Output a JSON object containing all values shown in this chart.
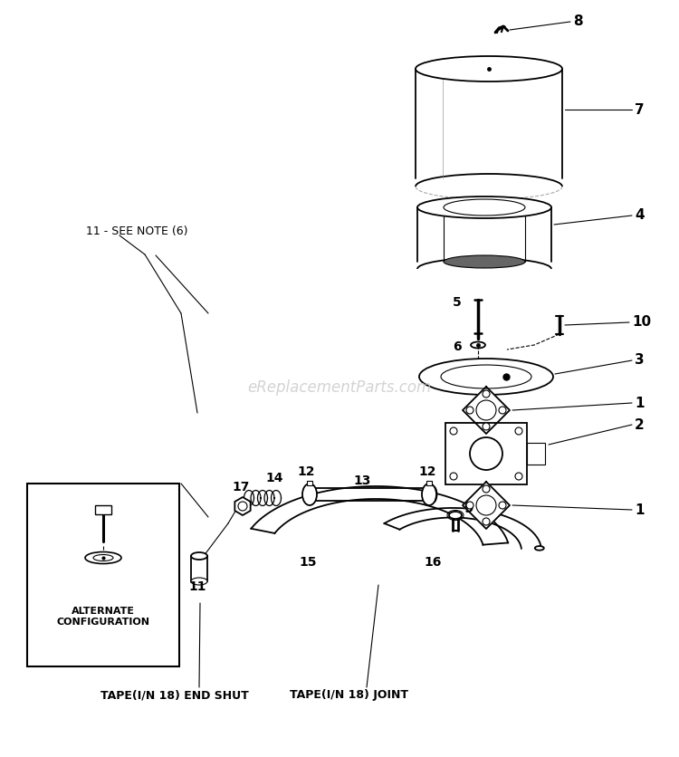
{
  "bg": "#ffffff",
  "lc": "#000000",
  "watermark": "eReplacementParts.com",
  "wm_color": "#cccccc",
  "wm_fs": 12,
  "tape_joint": "TAPE(I/N 18) JOINT",
  "tape_end": "TAPE(I/N 18) END SHUT",
  "alt_cfg": "ALTERNATE\nCONFIGURATION",
  "note11": "11 - SEE NOTE (6)"
}
